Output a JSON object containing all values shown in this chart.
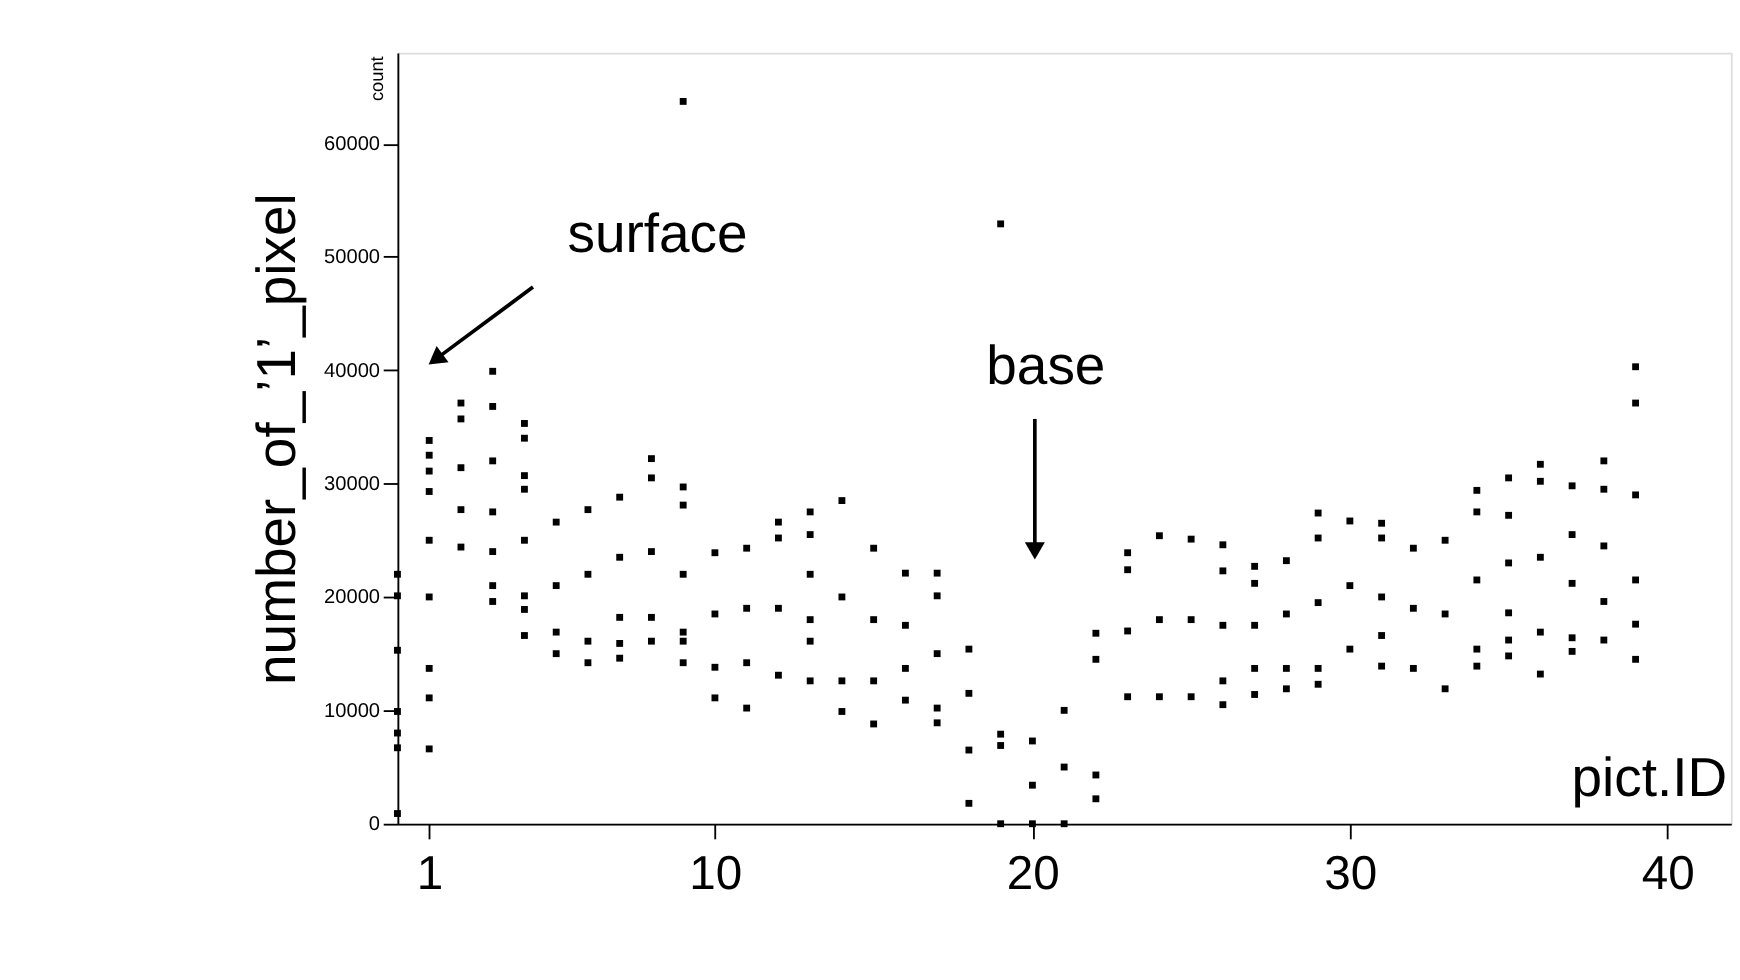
{
  "chart_data": {
    "type": "scatter",
    "xlabel": "pict.ID",
    "ylabel": "number_of_’1’_pixel",
    "xlim": [
      0,
      42
    ],
    "xticks": [
      1,
      10,
      20,
      30,
      40
    ],
    "ylim": [
      0,
      68000
    ],
    "yticks": [
      0,
      10000,
      20000,
      30000,
      40000,
      50000,
      60000
    ],
    "grid": false,
    "marker": "square",
    "legend": false,
    "annotations": [
      "count",
      "surface",
      "base"
    ],
    "series": [
      {
        "color": "#000000",
        "x": [
          0,
          0,
          0,
          0,
          0,
          0,
          0,
          1,
          1,
          1,
          1,
          1,
          1,
          1,
          1,
          1,
          2,
          2,
          2,
          2,
          2,
          3,
          3,
          3,
          3,
          3,
          3,
          3,
          4,
          4,
          4,
          4,
          4,
          4,
          4,
          4,
          5,
          5,
          5,
          5,
          6,
          6,
          6,
          6,
          7,
          7,
          7,
          7,
          7,
          8,
          8,
          8,
          8,
          8,
          9,
          9,
          9,
          9,
          9,
          9,
          9,
          10,
          10,
          10,
          10,
          11,
          11,
          11,
          11,
          12,
          12,
          12,
          12,
          13,
          13,
          13,
          13,
          13,
          13,
          14,
          14,
          14,
          14,
          15,
          15,
          15,
          15,
          16,
          16,
          16,
          16,
          17,
          17,
          17,
          17,
          17,
          18,
          18,
          18,
          18,
          19,
          19,
          19,
          19,
          20,
          20,
          20,
          21,
          21,
          21,
          22,
          22,
          22,
          22,
          23,
          23,
          23,
          23,
          24,
          24,
          24,
          25,
          25,
          25,
          26,
          26,
          26,
          26,
          26,
          27,
          27,
          27,
          27,
          27,
          28,
          28,
          28,
          28,
          29,
          29,
          29,
          29,
          29,
          30,
          30,
          30,
          31,
          31,
          31,
          31,
          31,
          32,
          32,
          32,
          33,
          33,
          33,
          34,
          34,
          34,
          34,
          34,
          35,
          35,
          35,
          35,
          35,
          35,
          36,
          36,
          36,
          36,
          36,
          37,
          37,
          37,
          37,
          37,
          38,
          38,
          38,
          38,
          38,
          39,
          39,
          39,
          39,
          39,
          39
        ],
        "values": [
          22000,
          20100,
          15300,
          9900,
          8000,
          6700,
          900,
          33800,
          32500,
          31100,
          29300,
          25000,
          20000,
          13700,
          11100,
          6600,
          37100,
          35700,
          31400,
          27700,
          24400,
          39900,
          36800,
          32000,
          27500,
          24000,
          21000,
          19600,
          35300,
          34000,
          30700,
          29500,
          25000,
          20100,
          18900,
          16600,
          26600,
          21000,
          16900,
          15000,
          27700,
          22000,
          16100,
          14200,
          28800,
          23500,
          18200,
          15900,
          14600,
          32200,
          30500,
          24000,
          18200,
          16100,
          63700,
          29700,
          28100,
          22000,
          16900,
          16100,
          14200,
          23900,
          18500,
          13800,
          11100,
          24300,
          19000,
          14200,
          10200,
          26600,
          25200,
          19000,
          13100,
          27500,
          25500,
          22000,
          18000,
          16100,
          12600,
          28500,
          20000,
          12600,
          9900,
          24300,
          18000,
          12600,
          8800,
          22100,
          17500,
          13700,
          10900,
          22100,
          20100,
          15000,
          10200,
          8900,
          15400,
          11500,
          6500,
          1800,
          52900,
          7900,
          6900,
          0,
          7300,
          3400,
          0,
          10000,
          5000,
          0,
          16800,
          14500,
          4300,
          2200,
          23900,
          22400,
          17000,
          11200,
          25400,
          18000,
          11200,
          25100,
          18000,
          11200,
          24600,
          22300,
          17500,
          12600,
          10500,
          22700,
          21200,
          17500,
          13700,
          11400,
          23200,
          18500,
          13700,
          11900,
          27400,
          25200,
          19500,
          13700,
          12300,
          26700,
          21000,
          15400,
          26500,
          25200,
          20000,
          16600,
          13900,
          24300,
          19000,
          13700,
          25000,
          18500,
          11900,
          29400,
          27500,
          21500,
          15400,
          13900,
          30500,
          27200,
          23000,
          18600,
          16200,
          14800,
          31700,
          30200,
          23500,
          16900,
          13200,
          29800,
          25500,
          21200,
          16400,
          15200,
          32000,
          29500,
          24500,
          19600,
          16200,
          40300,
          37100,
          29000,
          21500,
          17600,
          14500
        ]
      }
    ]
  }
}
